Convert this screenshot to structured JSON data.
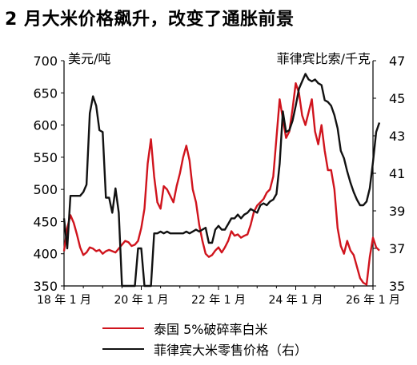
{
  "chart_data": {
    "type": "line",
    "title": "2 月大米价格飙升，改变了通胀前景",
    "left_axis": {
      "label": "美元/吨",
      "ylim": [
        350,
        700
      ],
      "ticks": [
        350,
        400,
        450,
        500,
        550,
        600,
        650,
        700
      ]
    },
    "right_axis": {
      "label": "菲律宾比索/千克",
      "ylim": [
        35,
        47
      ],
      "ticks": [
        35,
        37,
        39,
        41,
        43,
        45,
        47
      ]
    },
    "x_axis": {
      "ticks": [
        "18 年 1 月",
        "20 年 1 月",
        "22 年 1 月",
        "24 年 1 月",
        "26 年 1 月"
      ],
      "xlim": [
        "2018-01",
        "2026-01"
      ]
    },
    "grid": false,
    "legend_position": "bottom",
    "series": [
      {
        "name": "泰国 5%破碎率白米",
        "axis": "left",
        "color": "#d0141d",
        "points": [
          [
            "2018-01",
            404
          ],
          [
            "2018-02",
            440
          ],
          [
            "2018-03",
            460
          ],
          [
            "2018-04",
            448
          ],
          [
            "2018-05",
            430
          ],
          [
            "2018-06",
            410
          ],
          [
            "2018-07",
            398
          ],
          [
            "2018-08",
            402
          ],
          [
            "2018-09",
            410
          ],
          [
            "2018-10",
            408
          ],
          [
            "2018-11",
            404
          ],
          [
            "2018-12",
            406
          ],
          [
            "2019-01",
            400
          ],
          [
            "2019-02",
            404
          ],
          [
            "2019-03",
            406
          ],
          [
            "2019-04",
            404
          ],
          [
            "2019-05",
            402
          ],
          [
            "2019-06",
            408
          ],
          [
            "2019-07",
            414
          ],
          [
            "2019-08",
            420
          ],
          [
            "2019-09",
            418
          ],
          [
            "2019-10",
            412
          ],
          [
            "2019-11",
            414
          ],
          [
            "2019-12",
            420
          ],
          [
            "2020-01",
            440
          ],
          [
            "2020-02",
            470
          ],
          [
            "2020-03",
            540
          ],
          [
            "2020-04",
            578
          ],
          [
            "2020-05",
            520
          ],
          [
            "2020-06",
            480
          ],
          [
            "2020-07",
            470
          ],
          [
            "2020-08",
            505
          ],
          [
            "2020-09",
            500
          ],
          [
            "2020-10",
            490
          ],
          [
            "2020-11",
            480
          ],
          [
            "2020-12",
            505
          ],
          [
            "2021-01",
            525
          ],
          [
            "2021-02",
            550
          ],
          [
            "2021-03",
            568
          ],
          [
            "2021-04",
            545
          ],
          [
            "2021-05",
            500
          ],
          [
            "2021-06",
            480
          ],
          [
            "2021-07",
            445
          ],
          [
            "2021-08",
            420
          ],
          [
            "2021-09",
            400
          ],
          [
            "2021-10",
            395
          ],
          [
            "2021-11",
            398
          ],
          [
            "2021-12",
            405
          ],
          [
            "2022-01",
            410
          ],
          [
            "2022-02",
            402
          ],
          [
            "2022-03",
            410
          ],
          [
            "2022-04",
            420
          ],
          [
            "2022-05",
            435
          ],
          [
            "2022-06",
            428
          ],
          [
            "2022-07",
            430
          ],
          [
            "2022-08",
            425
          ],
          [
            "2022-09",
            428
          ],
          [
            "2022-10",
            430
          ],
          [
            "2022-11",
            445
          ],
          [
            "2022-12",
            465
          ],
          [
            "2023-01",
            475
          ],
          [
            "2023-02",
            480
          ],
          [
            "2023-03",
            485
          ],
          [
            "2023-04",
            495
          ],
          [
            "2023-05",
            500
          ],
          [
            "2023-06",
            520
          ],
          [
            "2023-07",
            580
          ],
          [
            "2023-08",
            640
          ],
          [
            "2023-09",
            610
          ],
          [
            "2023-10",
            580
          ],
          [
            "2023-11",
            590
          ],
          [
            "2023-12",
            625
          ],
          [
            "2024-01",
            665
          ],
          [
            "2024-02",
            650
          ],
          [
            "2024-03",
            615
          ],
          [
            "2024-04",
            600
          ],
          [
            "2024-05",
            620
          ],
          [
            "2024-06",
            640
          ],
          [
            "2024-07",
            590
          ],
          [
            "2024-08",
            570
          ],
          [
            "2024-09",
            600
          ],
          [
            "2024-10",
            560
          ],
          [
            "2024-11",
            530
          ],
          [
            "2024-12",
            530
          ],
          [
            "2025-01",
            500
          ],
          [
            "2025-02",
            440
          ],
          [
            "2025-03",
            412
          ],
          [
            "2025-04",
            400
          ],
          [
            "2025-05",
            420
          ],
          [
            "2025-06",
            405
          ],
          [
            "2025-07",
            398
          ],
          [
            "2025-08",
            380
          ],
          [
            "2025-09",
            362
          ],
          [
            "2025-10",
            355
          ],
          [
            "2025-11",
            352
          ],
          [
            "2025-12",
            395
          ],
          [
            "2026-01",
            425
          ],
          [
            "2026-02",
            410
          ],
          [
            "2026-03",
            405
          ]
        ]
      },
      {
        "name": "菲律宾大米零售价格（右）",
        "axis": "right",
        "color": "#111111",
        "points": [
          [
            "2018-01",
            38.6
          ],
          [
            "2018-02",
            37.0
          ],
          [
            "2018-03",
            39.8
          ],
          [
            "2018-04",
            39.8
          ],
          [
            "2018-05",
            39.8
          ],
          [
            "2018-06",
            39.8
          ],
          [
            "2018-07",
            40.0
          ],
          [
            "2018-08",
            40.4
          ],
          [
            "2018-09",
            44.2
          ],
          [
            "2018-10",
            45.1
          ],
          [
            "2018-11",
            44.6
          ],
          [
            "2018-12",
            43.3
          ],
          [
            "2019-01",
            43.2
          ],
          [
            "2019-02",
            39.7
          ],
          [
            "2019-03",
            39.7
          ],
          [
            "2019-04",
            38.9
          ],
          [
            "2019-05",
            40.2
          ],
          [
            "2019-06",
            38.9
          ],
          [
            "2019-07",
            35.0
          ],
          [
            "2019-08",
            35.0
          ],
          [
            "2019-09",
            35.0
          ],
          [
            "2019-10",
            35.0
          ],
          [
            "2019-11",
            35.0
          ],
          [
            "2019-12",
            37.0
          ],
          [
            "2020-01",
            37.0
          ],
          [
            "2020-02",
            35.0
          ],
          [
            "2020-03",
            35.0
          ],
          [
            "2020-04",
            35.0
          ],
          [
            "2020-05",
            37.8
          ],
          [
            "2020-06",
            37.8
          ],
          [
            "2020-07",
            37.9
          ],
          [
            "2020-08",
            37.8
          ],
          [
            "2020-09",
            37.9
          ],
          [
            "2020-10",
            37.8
          ],
          [
            "2020-11",
            37.8
          ],
          [
            "2020-12",
            37.8
          ],
          [
            "2021-01",
            37.8
          ],
          [
            "2021-02",
            37.8
          ],
          [
            "2021-03",
            37.9
          ],
          [
            "2021-04",
            37.8
          ],
          [
            "2021-05",
            37.9
          ],
          [
            "2021-06",
            38.0
          ],
          [
            "2021-07",
            37.9
          ],
          [
            "2021-08",
            38.0
          ],
          [
            "2021-09",
            38.1
          ],
          [
            "2021-10",
            37.3
          ],
          [
            "2021-11",
            37.3
          ],
          [
            "2021-12",
            38.0
          ],
          [
            "2022-01",
            38.2
          ],
          [
            "2022-02",
            38.0
          ],
          [
            "2022-03",
            38.0
          ],
          [
            "2022-04",
            38.3
          ],
          [
            "2022-05",
            38.6
          ],
          [
            "2022-06",
            38.6
          ],
          [
            "2022-07",
            38.8
          ],
          [
            "2022-08",
            38.6
          ],
          [
            "2022-09",
            38.8
          ],
          [
            "2022-10",
            38.9
          ],
          [
            "2022-11",
            39.1
          ],
          [
            "2022-12",
            39.0
          ],
          [
            "2023-01",
            38.9
          ],
          [
            "2023-02",
            39.3
          ],
          [
            "2023-03",
            39.4
          ],
          [
            "2023-04",
            39.3
          ],
          [
            "2023-05",
            39.5
          ],
          [
            "2023-06",
            39.6
          ],
          [
            "2023-07",
            39.9
          ],
          [
            "2023-08",
            41.5
          ],
          [
            "2023-09",
            44.3
          ],
          [
            "2023-10",
            43.2
          ],
          [
            "2023-11",
            43.3
          ],
          [
            "2023-12",
            43.8
          ],
          [
            "2024-01",
            44.6
          ],
          [
            "2024-02",
            45.5
          ],
          [
            "2024-03",
            45.9
          ],
          [
            "2024-04",
            46.3
          ],
          [
            "2024-05",
            46.0
          ],
          [
            "2024-06",
            45.9
          ],
          [
            "2024-07",
            46.0
          ],
          [
            "2024-08",
            45.8
          ],
          [
            "2024-09",
            45.7
          ],
          [
            "2024-10",
            44.9
          ],
          [
            "2024-11",
            44.8
          ],
          [
            "2024-12",
            44.6
          ],
          [
            "2025-01",
            44.1
          ],
          [
            "2025-02",
            43.4
          ],
          [
            "2025-03",
            42.2
          ],
          [
            "2025-04",
            41.8
          ],
          [
            "2025-05",
            41.1
          ],
          [
            "2025-06",
            40.5
          ],
          [
            "2025-07",
            40.0
          ],
          [
            "2025-08",
            39.6
          ],
          [
            "2025-09",
            39.3
          ],
          [
            "2025-10",
            39.3
          ],
          [
            "2025-11",
            39.5
          ],
          [
            "2025-12",
            40.2
          ],
          [
            "2026-01",
            41.6
          ],
          [
            "2026-02",
            43.2
          ],
          [
            "2026-03",
            43.7
          ]
        ]
      }
    ]
  }
}
